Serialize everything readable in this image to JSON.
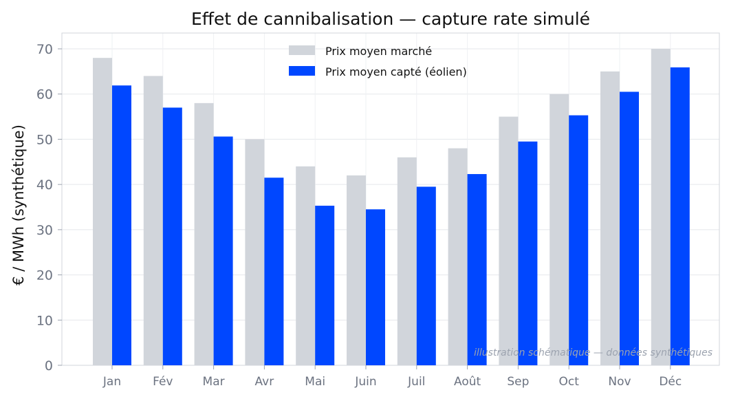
{
  "chart_data": {
    "type": "bar",
    "title": "Effet de cannibalisation — capture rate simulé",
    "xlabel": "",
    "ylabel": "€ / MWh (synthétique)",
    "ylim": [
      0,
      73.5
    ],
    "yticks": [
      0,
      10,
      20,
      30,
      40,
      50,
      60,
      70
    ],
    "grid": true,
    "legend_position": "top-center",
    "categories": [
      "Jan",
      "Fév",
      "Mar",
      "Avr",
      "Mai",
      "Juin",
      "Juil",
      "Août",
      "Sep",
      "Oct",
      "Nov",
      "Déc"
    ],
    "series": [
      {
        "name": "Prix moyen marché",
        "color": "#d1d5db",
        "values": [
          68,
          64,
          58,
          50,
          44,
          42,
          46,
          48,
          55,
          60,
          65,
          70
        ]
      },
      {
        "name": "Prix moyen capté (éolien)",
        "color": "#0047ff",
        "values": [
          61.9,
          57,
          50.6,
          41.5,
          35.3,
          34.5,
          39.5,
          42.3,
          49.5,
          55.3,
          60.5,
          65.9
        ]
      }
    ],
    "annotation": "illustration schématique — données synthétiques"
  }
}
